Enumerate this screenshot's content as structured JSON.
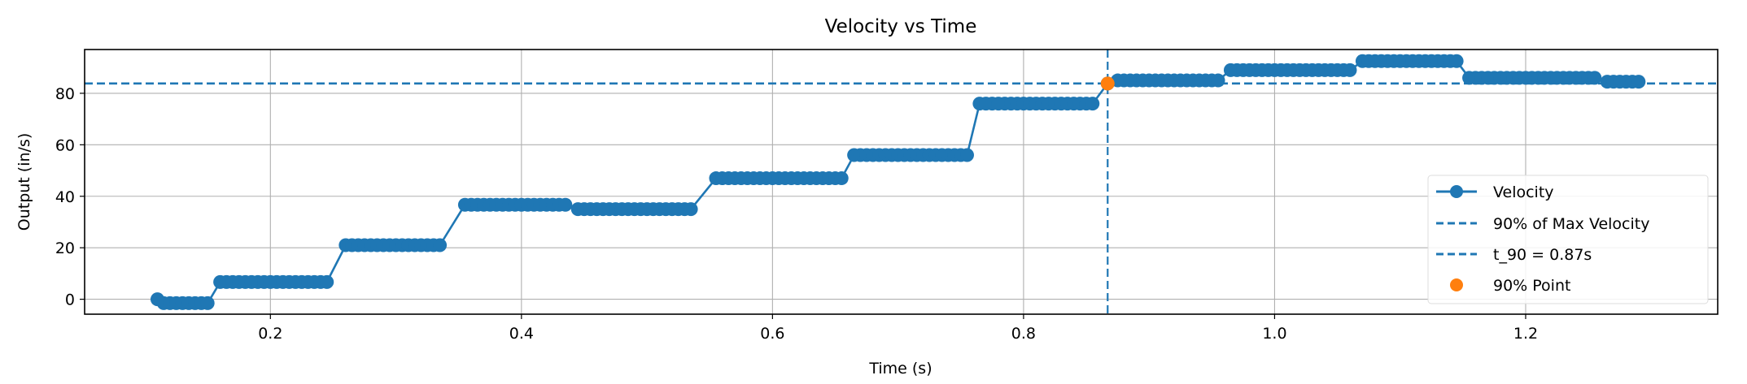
{
  "chart_data": {
    "type": "line",
    "title": "Velocity vs Time",
    "xlabel": "Time (s)",
    "ylabel": "Output (in/s)",
    "xlim": [
      0.052,
      1.353
    ],
    "ylim": [
      -5.8,
      97
    ],
    "xticks": [
      0.2,
      0.4,
      0.6,
      0.8,
      1.0,
      1.2
    ],
    "xtick_labels": [
      "0.2",
      "0.4",
      "0.6",
      "0.8",
      "1.0",
      "1.2"
    ],
    "yticks": [
      0,
      20,
      40,
      60,
      80
    ],
    "ytick_labels": [
      "0",
      "20",
      "40",
      "60",
      "80"
    ],
    "grid": true,
    "legend_position": "lower-right",
    "series": [
      {
        "name": "Velocity",
        "style": "line-with-markers",
        "color": "#1f77b4",
        "x": [
          0.11,
          0.115,
          0.12,
          0.125,
          0.13,
          0.135,
          0.14,
          0.145,
          0.15,
          0.16,
          0.165,
          0.17,
          0.175,
          0.18,
          0.185,
          0.19,
          0.195,
          0.2,
          0.205,
          0.21,
          0.215,
          0.22,
          0.225,
          0.23,
          0.235,
          0.24,
          0.245,
          0.26,
          0.265,
          0.27,
          0.275,
          0.28,
          0.285,
          0.29,
          0.295,
          0.3,
          0.305,
          0.31,
          0.315,
          0.32,
          0.325,
          0.33,
          0.335,
          0.355,
          0.36,
          0.365,
          0.37,
          0.375,
          0.38,
          0.385,
          0.39,
          0.395,
          0.4,
          0.405,
          0.41,
          0.415,
          0.42,
          0.425,
          0.43,
          0.435,
          0.445,
          0.45,
          0.455,
          0.46,
          0.465,
          0.47,
          0.475,
          0.48,
          0.485,
          0.49,
          0.495,
          0.5,
          0.505,
          0.51,
          0.515,
          0.52,
          0.525,
          0.53,
          0.535,
          0.555,
          0.56,
          0.565,
          0.57,
          0.575,
          0.58,
          0.585,
          0.59,
          0.595,
          0.6,
          0.605,
          0.61,
          0.615,
          0.62,
          0.625,
          0.63,
          0.635,
          0.64,
          0.645,
          0.65,
          0.655,
          0.665,
          0.67,
          0.675,
          0.68,
          0.685,
          0.69,
          0.695,
          0.7,
          0.705,
          0.71,
          0.715,
          0.72,
          0.725,
          0.73,
          0.735,
          0.74,
          0.745,
          0.75,
          0.755,
          0.765,
          0.77,
          0.775,
          0.78,
          0.785,
          0.79,
          0.795,
          0.8,
          0.805,
          0.81,
          0.815,
          0.82,
          0.825,
          0.83,
          0.835,
          0.84,
          0.845,
          0.85,
          0.855,
          0.867,
          0.875,
          0.88,
          0.885,
          0.89,
          0.895,
          0.9,
          0.905,
          0.91,
          0.915,
          0.92,
          0.925,
          0.93,
          0.935,
          0.94,
          0.945,
          0.95,
          0.955,
          0.965,
          0.97,
          0.975,
          0.98,
          0.985,
          0.99,
          0.995,
          1.0,
          1.005,
          1.01,
          1.015,
          1.02,
          1.025,
          1.03,
          1.035,
          1.04,
          1.045,
          1.05,
          1.055,
          1.06,
          1.07,
          1.075,
          1.08,
          1.085,
          1.09,
          1.095,
          1.1,
          1.105,
          1.11,
          1.115,
          1.12,
          1.125,
          1.13,
          1.135,
          1.14,
          1.145,
          1.155,
          1.16,
          1.165,
          1.17,
          1.175,
          1.18,
          1.185,
          1.19,
          1.195,
          1.2,
          1.205,
          1.21,
          1.215,
          1.22,
          1.225,
          1.23,
          1.235,
          1.24,
          1.245,
          1.25,
          1.255,
          1.265,
          1.27,
          1.275,
          1.28,
          1.285,
          1.29
        ],
        "y": [
          0,
          -1.5,
          -1.5,
          -1.5,
          -1.5,
          -1.5,
          -1.5,
          -1.5,
          -1.5,
          6.7,
          6.7,
          6.7,
          6.7,
          6.7,
          6.7,
          6.7,
          6.7,
          6.7,
          6.7,
          6.7,
          6.7,
          6.7,
          6.7,
          6.7,
          6.7,
          6.7,
          6.7,
          21,
          21,
          21,
          21,
          21,
          21,
          21,
          21,
          21,
          21,
          21,
          21,
          21,
          21,
          21,
          21,
          36.7,
          36.7,
          36.7,
          36.7,
          36.7,
          36.7,
          36.7,
          36.7,
          36.7,
          36.7,
          36.7,
          36.7,
          36.7,
          36.7,
          36.7,
          36.7,
          36.7,
          35,
          35,
          35,
          35,
          35,
          35,
          35,
          35,
          35,
          35,
          35,
          35,
          35,
          35,
          35,
          35,
          35,
          35,
          35,
          47,
          47,
          47,
          47,
          47,
          47,
          47,
          47,
          47,
          47,
          47,
          47,
          47,
          47,
          47,
          47,
          47,
          47,
          47,
          47,
          47,
          56,
          56,
          56,
          56,
          56,
          56,
          56,
          56,
          56,
          56,
          56,
          56,
          56,
          56,
          56,
          56,
          56,
          56,
          56,
          76,
          76,
          76,
          76,
          76,
          76,
          76,
          76,
          76,
          76,
          76,
          76,
          76,
          76,
          76,
          76,
          76,
          76,
          76,
          83.8,
          85,
          85,
          85,
          85,
          85,
          85,
          85,
          85,
          85,
          85,
          85,
          85,
          85,
          85,
          85,
          85,
          85,
          89,
          89,
          89,
          89,
          89,
          89,
          89,
          89,
          89,
          89,
          89,
          89,
          89,
          89,
          89,
          89,
          89,
          89,
          89,
          89,
          92.5,
          92.5,
          92.5,
          92.5,
          92.5,
          92.5,
          92.5,
          92.5,
          92.5,
          92.5,
          92.5,
          92.5,
          92.5,
          92.5,
          92.5,
          92.5,
          86,
          86,
          86,
          86,
          86,
          86,
          86,
          86,
          86,
          86,
          86,
          86,
          86,
          86,
          86,
          86,
          86,
          86,
          86,
          86,
          86,
          84.5,
          84.5,
          84.5,
          84.5,
          84.5,
          84.5
        ]
      }
    ],
    "hline": {
      "name": "90% of Max Velocity",
      "y": 83.8,
      "color": "#1f77b4",
      "style": "dashed"
    },
    "vline": {
      "name": "t_90 = 0.87s",
      "x": 0.867,
      "color": "#1f77b4",
      "style": "dashed"
    },
    "point": {
      "name": "90% Point",
      "x": 0.867,
      "y": 83.8,
      "color": "#ff7f0e"
    },
    "legend": [
      "Velocity",
      "90% of Max Velocity",
      "t_90 = 0.87s",
      "90% Point"
    ]
  }
}
